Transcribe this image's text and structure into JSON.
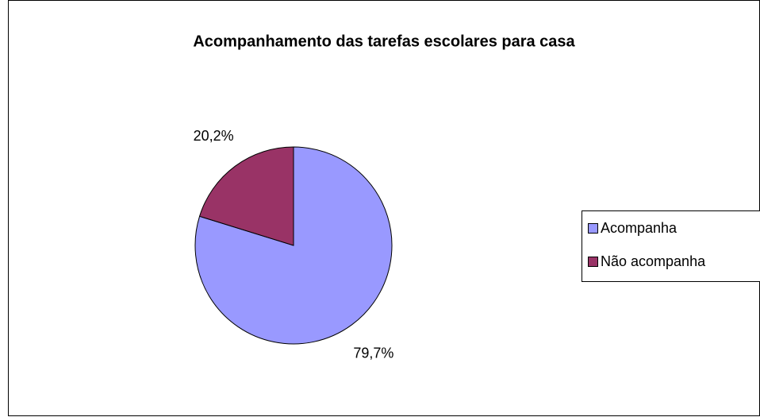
{
  "chart_data": {
    "type": "pie",
    "title": "Acompanhamento das tarefas escolares para casa",
    "categories": [
      "Acompanha",
      "Não acompanha"
    ],
    "values": [
      79.7,
      20.2
    ],
    "value_labels": [
      "79,7%",
      "20,2%"
    ],
    "colors": [
      "#9999ff",
      "#993366"
    ],
    "legend": "right"
  }
}
